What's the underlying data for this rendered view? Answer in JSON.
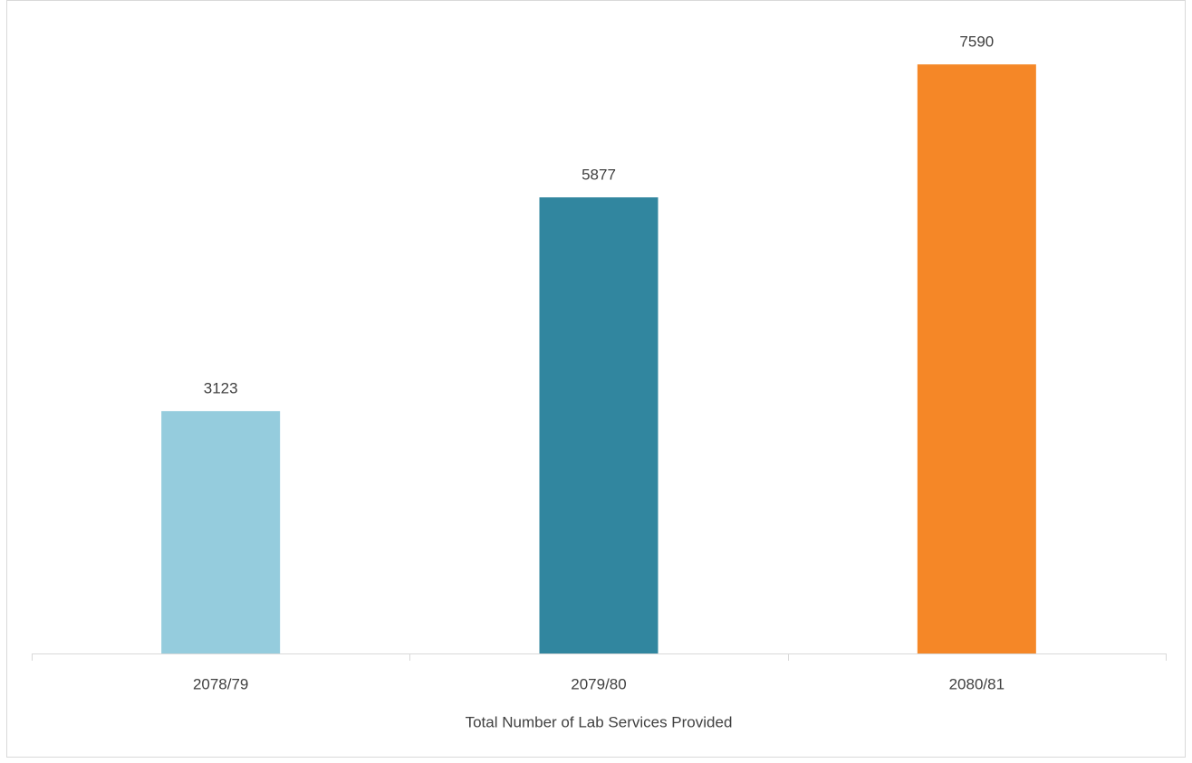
{
  "chart_data": {
    "type": "bar",
    "categories": [
      "2078/79",
      "2079/80",
      "2080/81"
    ],
    "values": [
      3123,
      5877,
      7590
    ],
    "colors": [
      "#95ccdd",
      "#31869f",
      "#f58727"
    ],
    "x_label": "Total Number of Lab Services Provided",
    "ylim": [
      0,
      8000
    ]
  }
}
